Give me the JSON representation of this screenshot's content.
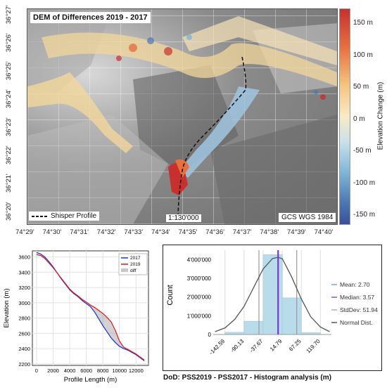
{
  "map": {
    "title": "DEM of Differences 2019 - 2017",
    "legend_label": "Shisper Profile",
    "scale": "1:130'000",
    "crs": "GCS WGS 1984",
    "lat_ticks": [
      "36°27'",
      "36°26'",
      "36°25'",
      "36°24'",
      "36°23'",
      "36°22'",
      "36°21'",
      "36°20'"
    ],
    "lon_ticks": [
      "74°29'",
      "74°30'",
      "74°31'",
      "74°32'",
      "74°33'",
      "74°34'",
      "74°35'",
      "74°36'",
      "74°37'",
      "74°38'",
      "74°39'",
      "74°40'"
    ],
    "colorbar": {
      "label": "Elevation Change (m)",
      "ticks": [
        "150 m",
        "100 m",
        "50 m",
        "0 m",
        "-50 m",
        "-100 m",
        "-150 m"
      ],
      "colors": [
        "#c8302d",
        "#e8703f",
        "#f6c37c",
        "#f8ebc5",
        "#c8e1ea",
        "#7fb6d6",
        "#3a4f9e"
      ]
    }
  },
  "chart_data": [
    {
      "type": "line",
      "xlabel": "Profile Length (m)",
      "ylabel": "Elevation (m)",
      "xlim": [
        -500,
        13500
      ],
      "ylim": [
        2180,
        3680
      ],
      "x_ticks": [
        0,
        2000,
        4000,
        6000,
        8000,
        10000,
        12000
      ],
      "y_ticks": [
        2200,
        2400,
        2600,
        2800,
        3000,
        3200,
        3400,
        3600
      ],
      "legend": [
        "2017",
        "2019",
        "diff"
      ],
      "legend_placement": "top-right",
      "grid": true,
      "series": [
        {
          "name": "2017",
          "color": "#1f2fd6",
          "x": [
            0,
            500,
            1000,
            1500,
            2000,
            2500,
            3000,
            3500,
            4000,
            4500,
            5000,
            5500,
            6000,
            6500,
            7000,
            7500,
            8000,
            8500,
            9000,
            9500,
            10000,
            10500,
            11000,
            11500,
            12000,
            12500,
            13000
          ],
          "y": [
            3660,
            3640,
            3600,
            3540,
            3470,
            3390,
            3310,
            3240,
            3170,
            3120,
            3080,
            3030,
            2990,
            2950,
            2880,
            2790,
            2700,
            2620,
            2540,
            2480,
            2430,
            2400,
            2380,
            2350,
            2320,
            2280,
            2240
          ]
        },
        {
          "name": "2019",
          "color": "#e01818",
          "x": [
            0,
            500,
            1000,
            1500,
            2000,
            2500,
            3000,
            3500,
            4000,
            4500,
            5000,
            5500,
            6000,
            6500,
            7000,
            7500,
            8000,
            8500,
            9000,
            9500,
            10000,
            10500,
            11000,
            11500,
            12000,
            12500,
            13000
          ],
          "y": [
            3630,
            3620,
            3580,
            3520,
            3460,
            3390,
            3320,
            3250,
            3180,
            3130,
            3090,
            3045,
            3010,
            2970,
            2940,
            2900,
            2860,
            2810,
            2750,
            2640,
            2500,
            2420,
            2390,
            2360,
            2330,
            2290,
            2250
          ]
        }
      ]
    },
    {
      "type": "bar",
      "title": "DoD: PSS2019 - PSS2017 - Histogram analysis (m)",
      "ylabel": "Count",
      "bin_edges": [
        -142.59,
        -90.13,
        -37.67,
        14.79,
        67.25,
        119.7
      ],
      "x_tick_labels": [
        "-142.59",
        "-90.13",
        "-37.67",
        "14.79",
        "67.25",
        "119.70"
      ],
      "y_ticks": [
        "0",
        "1'000'000",
        "2'000'000",
        "3'000'000",
        "4'000'000"
      ],
      "ylim": [
        0,
        4500000
      ],
      "values": [
        110000,
        700000,
        4250000,
        1950000,
        90000
      ],
      "normal_dist": {
        "x": [
          -170,
          -142.59,
          -116,
          -90.13,
          -64,
          -37.67,
          -12,
          2.7,
          14.79,
          40,
          67.25,
          93,
          119.7,
          145
        ],
        "y": [
          150000,
          350000,
          800000,
          1500000,
          2500000,
          3500000,
          4050000,
          4120000,
          4050000,
          3100000,
          1900000,
          950000,
          400000,
          150000
        ]
      },
      "mean": 2.7,
      "median": 3.57,
      "stddev": 51.94,
      "legend": [
        {
          "label": "Mean: 2.70",
          "color": "#7aa7de"
        },
        {
          "label": "Median: 3.57",
          "color": "#9b4fd1"
        },
        {
          "label": "StdDev: 51.94",
          "color": "#b0b0b0"
        },
        {
          "label": "Normal Dist.",
          "color": "#555555"
        }
      ],
      "legend_placement": "right",
      "bar_color": "#b9dcea"
    }
  ]
}
